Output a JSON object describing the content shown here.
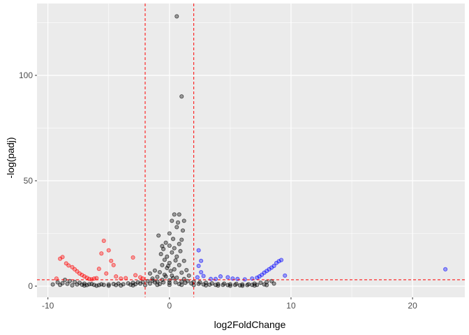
{
  "chart_data": {
    "type": "scatter",
    "title": "",
    "xlabel": "log2FoldChange",
    "ylabel": "-log(padj)",
    "xlim": [
      -10.9,
      24.3
    ],
    "ylim": [
      -5.3,
      134.1
    ],
    "x_ticks": [
      -10,
      0,
      10,
      20
    ],
    "y_ticks": [
      0,
      50,
      100
    ],
    "x_tick_labels": [
      "-10",
      "0",
      "10",
      "20"
    ],
    "y_tick_labels": [
      "0",
      "50",
      "100"
    ],
    "grid": true,
    "background": "#ebebeb",
    "vlines": [
      -2,
      2
    ],
    "hlines": [
      3
    ],
    "reference_line_color": "#ff0000",
    "series": [
      {
        "color": "#ff0000",
        "points": [
          [
            -9.0,
            13.0
          ],
          [
            -8.8,
            13.8
          ],
          [
            -8.5,
            10.8
          ],
          [
            -8.3,
            9.8
          ],
          [
            -8.0,
            9.0
          ],
          [
            -7.8,
            8.0
          ],
          [
            -7.6,
            7.0
          ],
          [
            -7.4,
            6.0
          ],
          [
            -7.2,
            5.3
          ],
          [
            -7.0,
            4.6
          ],
          [
            -6.8,
            4.0
          ],
          [
            -6.6,
            3.4
          ],
          [
            -6.4,
            3.2
          ],
          [
            -6.2,
            3.6
          ],
          [
            -5.4,
            21.5
          ],
          [
            -5.6,
            15.5
          ],
          [
            -5.0,
            17.0
          ],
          [
            -4.8,
            12.0
          ],
          [
            -4.6,
            10.0
          ],
          [
            -3.0,
            13.6
          ],
          [
            -5.8,
            8.2
          ],
          [
            -5.2,
            6.0
          ],
          [
            -4.4,
            4.6
          ],
          [
            -2.4,
            4.2
          ],
          [
            -2.8,
            5.2
          ],
          [
            -2.2,
            3.6
          ],
          [
            -3.6,
            3.8
          ],
          [
            -4.0,
            3.6
          ],
          [
            -6.0,
            3.8
          ],
          [
            -9.3,
            3.6
          ]
        ]
      },
      {
        "color": "#0000ff",
        "points": [
          [
            2.4,
            17.0
          ],
          [
            2.6,
            12.0
          ],
          [
            2.4,
            9.6
          ],
          [
            2.6,
            6.6
          ],
          [
            2.8,
            4.8
          ],
          [
            2.3,
            4.2
          ],
          [
            3.4,
            3.4
          ],
          [
            4.2,
            4.6
          ],
          [
            4.8,
            4.2
          ],
          [
            5.2,
            3.6
          ],
          [
            6.8,
            3.6
          ],
          [
            7.2,
            4.0
          ],
          [
            7.4,
            4.6
          ],
          [
            7.6,
            5.4
          ],
          [
            7.8,
            6.4
          ],
          [
            8.0,
            7.2
          ],
          [
            8.2,
            8.0
          ],
          [
            8.4,
            8.8
          ],
          [
            8.6,
            9.6
          ],
          [
            8.8,
            11.0
          ],
          [
            9.0,
            11.8
          ],
          [
            9.2,
            12.4
          ],
          [
            9.5,
            5.0
          ],
          [
            22.7,
            8.0
          ],
          [
            5.6,
            3.4
          ],
          [
            6.2,
            3.2
          ],
          [
            3.8,
            3.4
          ]
        ]
      },
      {
        "color": "#000000",
        "points": [
          [
            0.6,
            128.0
          ],
          [
            1.0,
            90.0
          ],
          [
            0.4,
            34.0
          ],
          [
            0.8,
            34.0
          ],
          [
            0.2,
            31.0
          ],
          [
            1.2,
            31.0
          ],
          [
            0.6,
            28.0
          ],
          [
            0.0,
            25.0
          ],
          [
            1.0,
            22.0
          ],
          [
            0.8,
            20.0
          ],
          [
            0.4,
            18.0
          ],
          [
            0.2,
            16.0
          ],
          [
            -0.2,
            14.0
          ],
          [
            0.6,
            14.0
          ],
          [
            -0.4,
            12.5
          ],
          [
            1.2,
            12.0
          ],
          [
            0.0,
            11.0
          ],
          [
            -0.6,
            10.0
          ],
          [
            0.8,
            10.0
          ],
          [
            -0.2,
            8.6
          ],
          [
            0.4,
            8.0
          ],
          [
            -1.2,
            7.4
          ],
          [
            1.4,
            7.6
          ],
          [
            -0.8,
            6.6
          ],
          [
            1.0,
            6.4
          ],
          [
            -1.6,
            6.0
          ],
          [
            -0.4,
            5.4
          ],
          [
            0.2,
            5.0
          ],
          [
            1.6,
            5.0
          ],
          [
            -1.0,
            4.4
          ],
          [
            0.6,
            4.0
          ],
          [
            -1.4,
            3.6
          ],
          [
            1.2,
            3.4
          ],
          [
            -0.6,
            3.0
          ],
          [
            0.0,
            2.8
          ],
          [
            -0.9,
            24.0
          ],
          [
            -0.6,
            19.0
          ],
          [
            -8.6,
            3.0
          ],
          [
            -8.2,
            2.4
          ],
          [
            -7.8,
            2.0
          ],
          [
            -7.4,
            1.6
          ],
          [
            -7.0,
            1.2
          ],
          [
            -6.6,
            0.9
          ],
          [
            -6.2,
            0.6
          ],
          [
            -5.8,
            0.5
          ],
          [
            -5.4,
            0.6
          ],
          [
            -5.0,
            0.8
          ],
          [
            -4.6,
            1.0
          ],
          [
            -4.2,
            1.2
          ],
          [
            -3.8,
            0.9
          ],
          [
            -3.4,
            1.3
          ],
          [
            -3.0,
            1.6
          ],
          [
            -2.6,
            1.8
          ],
          [
            -2.2,
            2.0
          ],
          [
            -1.8,
            2.4
          ],
          [
            -1.4,
            2.6
          ],
          [
            -1.0,
            2.2
          ],
          [
            -0.5,
            1.8
          ],
          [
            0.0,
            1.6
          ],
          [
            0.5,
            1.8
          ],
          [
            1.0,
            2.2
          ],
          [
            1.5,
            2.4
          ],
          [
            2.0,
            2.0
          ],
          [
            2.5,
            1.8
          ],
          [
            3.0,
            1.6
          ],
          [
            3.5,
            1.3
          ],
          [
            4.0,
            1.0
          ],
          [
            4.5,
            1.2
          ],
          [
            5.0,
            0.9
          ],
          [
            5.5,
            1.1
          ],
          [
            6.0,
            0.8
          ],
          [
            6.5,
            0.9
          ],
          [
            7.0,
            1.2
          ],
          [
            7.5,
            1.6
          ],
          [
            8.0,
            2.0
          ],
          [
            8.4,
            2.4
          ],
          [
            -9.6,
            0.8
          ],
          [
            -9.0,
            0.6
          ],
          [
            -8.0,
            0.4
          ],
          [
            -7.0,
            0.3
          ],
          [
            -6.0,
            0.2
          ],
          [
            -5.0,
            0.2
          ],
          [
            -4.0,
            0.3
          ],
          [
            -3.0,
            0.4
          ],
          [
            -2.0,
            0.5
          ],
          [
            -1.0,
            0.6
          ],
          [
            0.0,
            0.6
          ],
          [
            1.0,
            0.6
          ],
          [
            2.0,
            0.5
          ],
          [
            3.0,
            0.4
          ],
          [
            4.0,
            0.3
          ],
          [
            5.0,
            0.2
          ],
          [
            6.0,
            0.2
          ],
          [
            7.0,
            0.3
          ],
          [
            8.0,
            0.5
          ],
          [
            -8.8,
            1.4
          ],
          [
            -7.6,
            0.8
          ],
          [
            -6.8,
            0.5
          ],
          [
            -2.8,
            0.9
          ],
          [
            -1.6,
            1.2
          ],
          [
            -0.8,
            1.0
          ],
          [
            0.8,
            1.0
          ],
          [
            1.8,
            1.3
          ],
          [
            2.8,
            0.8
          ],
          [
            3.8,
            0.6
          ],
          [
            4.8,
            0.5
          ],
          [
            5.8,
            0.4
          ],
          [
            6.8,
            0.6
          ],
          [
            7.8,
            0.8
          ],
          [
            -0.3,
            4.6
          ],
          [
            0.3,
            3.8
          ],
          [
            -1.2,
            1.8
          ],
          [
            1.3,
            1.6
          ],
          [
            -2.4,
            1.2
          ],
          [
            2.4,
            1.1
          ],
          [
            -3.2,
            0.7
          ],
          [
            3.3,
            0.7
          ],
          [
            -4.4,
            0.5
          ],
          [
            4.4,
            0.6
          ],
          [
            -5.6,
            0.9
          ],
          [
            5.4,
            0.6
          ],
          [
            -6.4,
            1.0
          ],
          [
            6.4,
            0.5
          ],
          [
            -7.2,
            0.7
          ],
          [
            7.2,
            0.6
          ],
          [
            -9.2,
            1.8
          ],
          [
            -8.4,
            1.1
          ],
          [
            8.6,
            1.2
          ],
          [
            0.1,
            7.2
          ],
          [
            -0.1,
            9.6
          ],
          [
            0.5,
            12.2
          ],
          [
            -0.7,
            15.2
          ],
          [
            0.9,
            16.6
          ],
          [
            -0.3,
            20.6
          ],
          [
            0.3,
            22.4
          ],
          [
            1.1,
            26.4
          ],
          [
            0.7,
            30.2
          ],
          [
            -0.5,
            17.6
          ],
          [
            0.0,
            19.2
          ]
        ]
      }
    ]
  }
}
